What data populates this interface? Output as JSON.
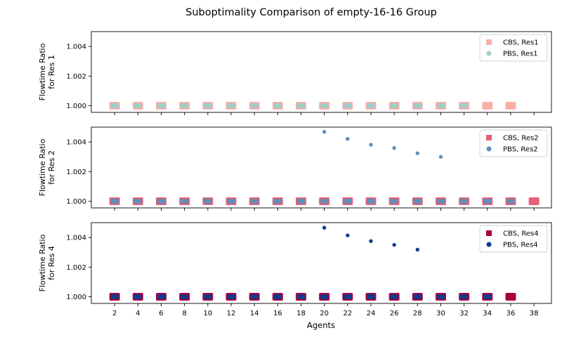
{
  "figure": {
    "title": "Suboptimality Comparison of empty-16-16 Group",
    "xlabel": "Agents"
  },
  "chart_data": [
    {
      "type": "scatter",
      "ylabel_lines": [
        "Flowtime Ratio",
        "for Res 1"
      ],
      "ylim": [
        0.99955,
        1.005
      ],
      "yticks": [
        1.0,
        1.002,
        1.004
      ],
      "ytick_labels": [
        "1.000",
        "1.002",
        "1.004"
      ],
      "xlim": [
        0,
        39.5
      ],
      "xticks": [
        2,
        4,
        6,
        8,
        10,
        12,
        14,
        16,
        18,
        20,
        22,
        24,
        26,
        28,
        30,
        32,
        34,
        36,
        38
      ],
      "xtick_labels": [
        "2",
        "4",
        "6",
        "8",
        "10",
        "12",
        "14",
        "16",
        "18",
        "20",
        "22",
        "24",
        "26",
        "28",
        "30",
        "32",
        "34",
        "36",
        "38"
      ],
      "legend_position": "top-right",
      "series": [
        {
          "name": "CBS, Res1",
          "marker": "square",
          "color": "#f7b0a8",
          "x": [
            2,
            4,
            6,
            8,
            10,
            12,
            14,
            16,
            18,
            20,
            22,
            24,
            26,
            28,
            30,
            32,
            34,
            36
          ],
          "y": [
            1,
            1,
            1,
            1,
            1,
            1,
            1,
            1,
            1,
            1,
            1,
            1,
            1,
            1,
            1,
            1,
            1,
            1
          ]
        },
        {
          "name": "PBS, Res1",
          "marker": "circle",
          "color": "#9ccfc8",
          "x": [
            2,
            4,
            6,
            8,
            10,
            12,
            14,
            16,
            18,
            20,
            22,
            24,
            26,
            28,
            30,
            32
          ],
          "y": [
            1,
            1,
            1,
            1,
            1,
            1,
            1,
            1,
            1,
            1,
            1,
            1,
            1,
            1,
            1,
            1
          ]
        }
      ]
    },
    {
      "type": "scatter",
      "ylabel_lines": [
        "Flowtime Ratio",
        "for Res 2"
      ],
      "ylim": [
        0.99955,
        1.005
      ],
      "yticks": [
        1.0,
        1.002,
        1.004
      ],
      "ytick_labels": [
        "1.000",
        "1.002",
        "1.004"
      ],
      "xlim": [
        0,
        39.5
      ],
      "xticks": [
        2,
        4,
        6,
        8,
        10,
        12,
        14,
        16,
        18,
        20,
        22,
        24,
        26,
        28,
        30,
        32,
        34,
        36,
        38
      ],
      "xtick_labels": [
        "2",
        "4",
        "6",
        "8",
        "10",
        "12",
        "14",
        "16",
        "18",
        "20",
        "22",
        "24",
        "26",
        "28",
        "30",
        "32",
        "34",
        "36",
        "38"
      ],
      "legend_position": "top-right",
      "series": [
        {
          "name": "CBS, Res2",
          "marker": "square",
          "color": "#e5607a",
          "x": [
            2,
            4,
            6,
            8,
            10,
            12,
            14,
            16,
            18,
            20,
            22,
            24,
            26,
            28,
            30,
            32,
            34,
            36,
            38
          ],
          "y": [
            1,
            1,
            1,
            1,
            1,
            1,
            1,
            1,
            1,
            1,
            1,
            1,
            1,
            1,
            1,
            1,
            1,
            1,
            1
          ]
        },
        {
          "name": "PBS, Res2",
          "marker": "circle",
          "color": "#5f8fb8",
          "x": [
            2,
            4,
            6,
            8,
            10,
            12,
            14,
            16,
            18,
            20,
            22,
            24,
            26,
            28,
            30,
            32,
            34,
            36,
            20,
            22,
            24,
            26,
            28,
            30
          ],
          "y": [
            1,
            1,
            1,
            1,
            1,
            1,
            1,
            1,
            1,
            1,
            1,
            1,
            1,
            1,
            1,
            1,
            1,
            1,
            1.00468,
            1.00421,
            1.00381,
            1.00359,
            1.00324,
            1.003
          ]
        }
      ]
    },
    {
      "type": "scatter",
      "ylabel_lines": [
        "Flowtime Ratio",
        "for Res 4"
      ],
      "ylim": [
        0.99955,
        1.005
      ],
      "yticks": [
        1.0,
        1.002,
        1.004
      ],
      "ytick_labels": [
        "1.000",
        "1.002",
        "1.004"
      ],
      "xlim": [
        0,
        39.5
      ],
      "xticks": [
        2,
        4,
        6,
        8,
        10,
        12,
        14,
        16,
        18,
        20,
        22,
        24,
        26,
        28,
        30,
        32,
        34,
        36,
        38
      ],
      "xtick_labels": [
        "2",
        "4",
        "6",
        "8",
        "10",
        "12",
        "14",
        "16",
        "18",
        "20",
        "22",
        "24",
        "26",
        "28",
        "30",
        "32",
        "34",
        "36",
        "38"
      ],
      "legend_position": "top-right",
      "series": [
        {
          "name": "CBS, Res4",
          "marker": "square",
          "color": "#a8003f",
          "x": [
            2,
            4,
            6,
            8,
            10,
            12,
            14,
            16,
            18,
            20,
            22,
            24,
            26,
            28,
            30,
            32,
            34,
            36
          ],
          "y": [
            1,
            1,
            1,
            1,
            1,
            1,
            1,
            1,
            1,
            1,
            1,
            1,
            1,
            1,
            1,
            1,
            1,
            1
          ]
        },
        {
          "name": "PBS, Res4",
          "marker": "circle",
          "color": "#0c3c8c",
          "x": [
            2,
            4,
            6,
            8,
            10,
            12,
            14,
            16,
            18,
            20,
            22,
            24,
            26,
            28,
            30,
            32,
            34,
            20,
            22,
            24,
            26,
            28
          ],
          "y": [
            1,
            1,
            1,
            1,
            1,
            1,
            1,
            1,
            1,
            1,
            1,
            1,
            1,
            1,
            1,
            1,
            1,
            1.00466,
            1.00414,
            1.00376,
            1.0035,
            1.00318
          ]
        }
      ]
    }
  ]
}
